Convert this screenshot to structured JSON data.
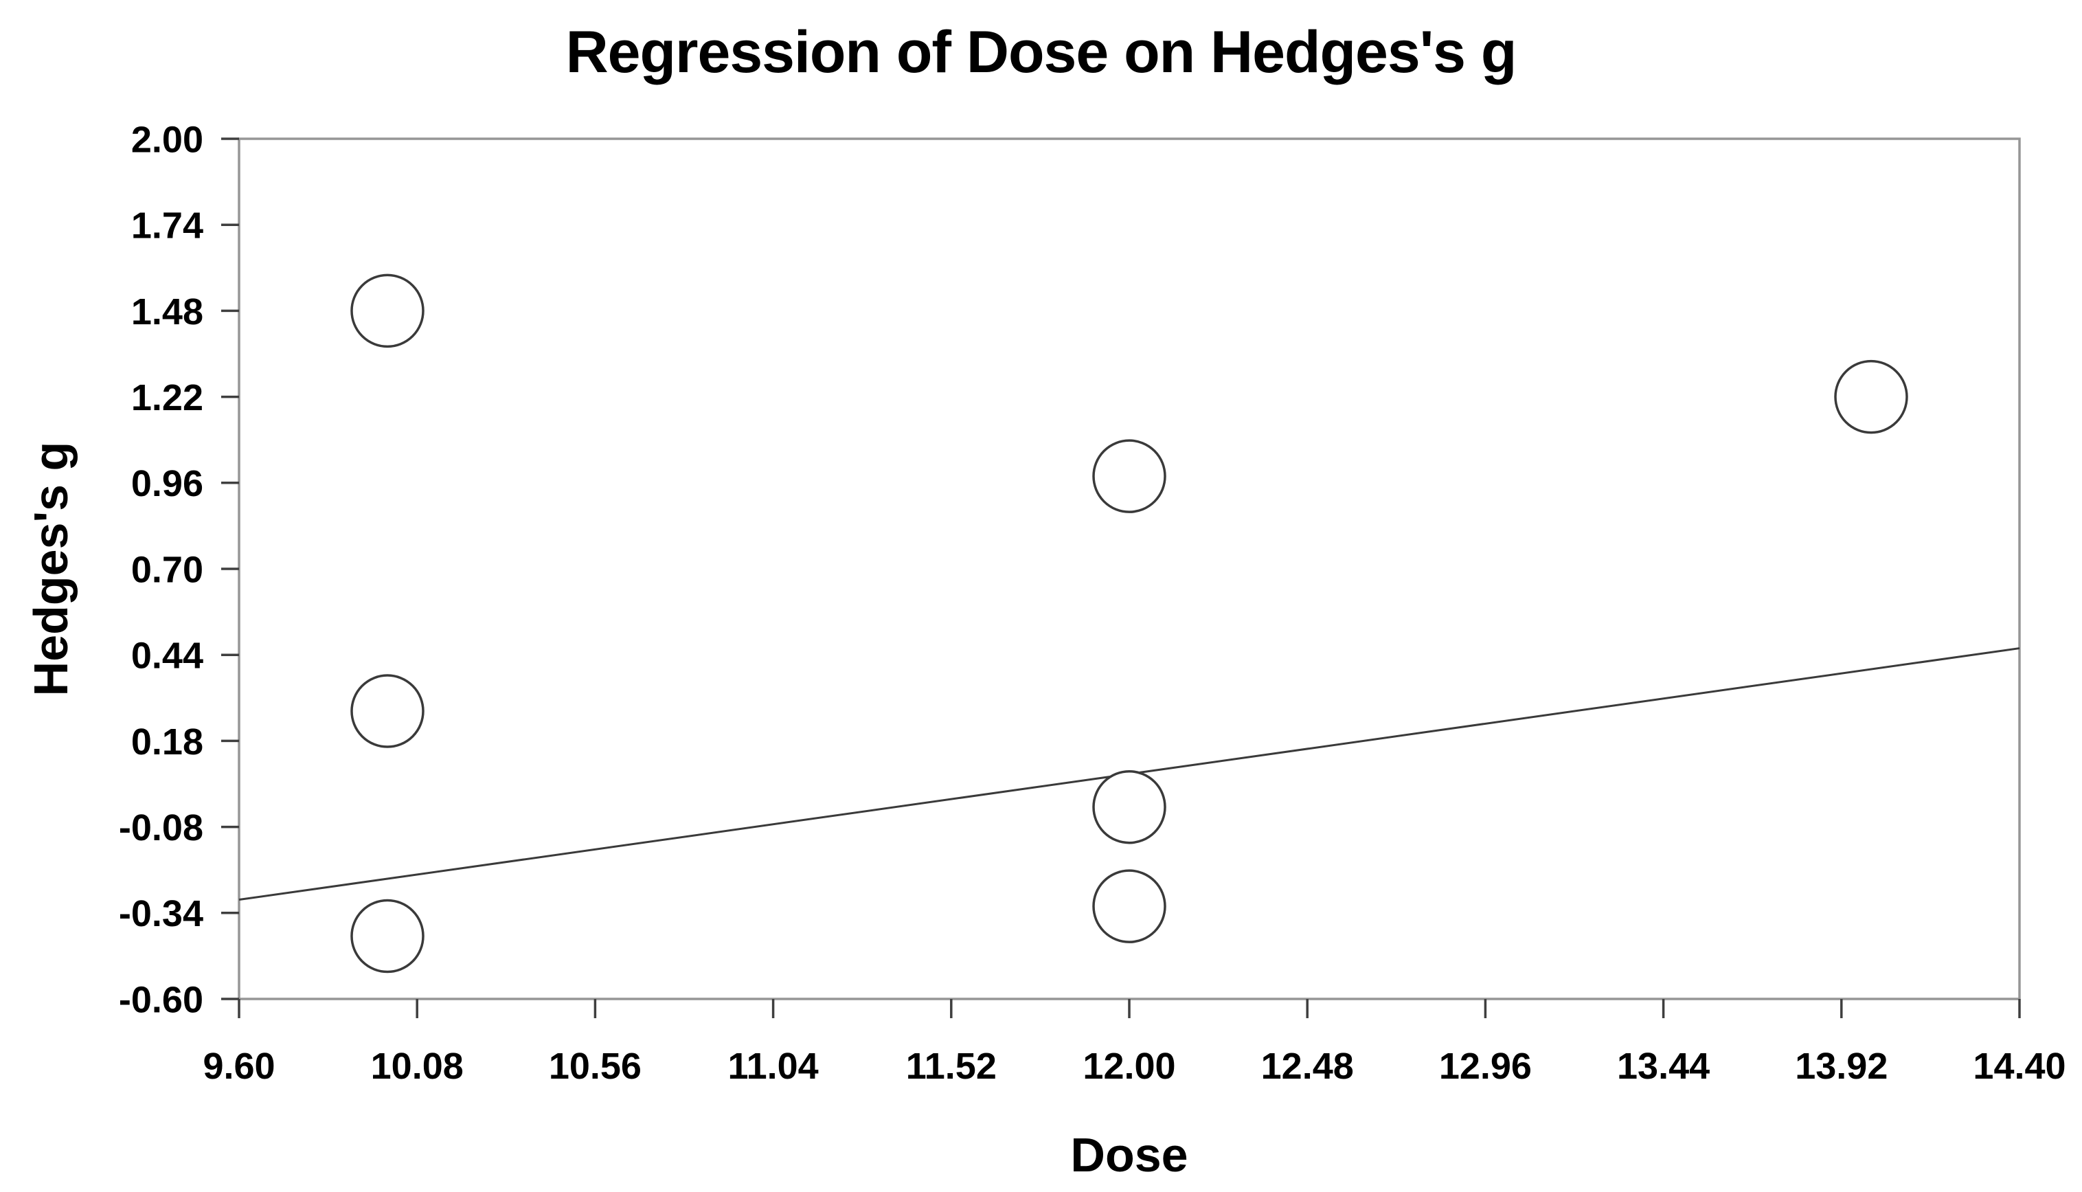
{
  "figure": {
    "title": "Regression of Dose on Hedges's g",
    "x_axis_label": "Dose",
    "y_axis_label": "Hedges's g"
  },
  "chart_data": {
    "type": "scatter",
    "title": "Regression of Dose on Hedges's g",
    "xlabel": "Dose",
    "ylabel": "Hedges's g",
    "xlim": [
      9.6,
      14.4
    ],
    "ylim": [
      -0.6,
      2.0
    ],
    "x_tick_step": 0.48,
    "y_tick_step": 0.26,
    "x_tick_labels": [
      "9.60",
      "10.08",
      "10.56",
      "11.04",
      "11.52",
      "12.00",
      "12.48",
      "12.96",
      "13.44",
      "13.92",
      "14.40"
    ],
    "y_tick_labels": [
      "2.00",
      "1.74",
      "1.48",
      "1.22",
      "0.96",
      "0.70",
      "0.44",
      "0.18",
      "-0.08",
      "-0.34",
      "-0.60"
    ],
    "points": [
      {
        "dose": 10.0,
        "hedges_g": 1.48
      },
      {
        "dose": 10.0,
        "hedges_g": 0.27
      },
      {
        "dose": 10.0,
        "hedges_g": -0.41
      },
      {
        "dose": 12.0,
        "hedges_g": 0.98
      },
      {
        "dose": 12.0,
        "hedges_g": -0.02
      },
      {
        "dose": 12.0,
        "hedges_g": -0.32
      },
      {
        "dose": 14.0,
        "hedges_g": 1.22
      }
    ],
    "regression_line": {
      "x_start": 9.6,
      "g_start": -0.3,
      "x_end": 14.4,
      "g_end": 0.46
    },
    "marker": {
      "shape": "circle",
      "fill": "none",
      "radius_px": 52
    },
    "grid": false,
    "legend": false,
    "colors": {
      "background": "#ffffff",
      "text": "#000000",
      "frame": "#969696",
      "tick": "#3f3f3f",
      "marker_stroke": "#3a3a3a",
      "regression_line": "#3a3a3a"
    }
  }
}
